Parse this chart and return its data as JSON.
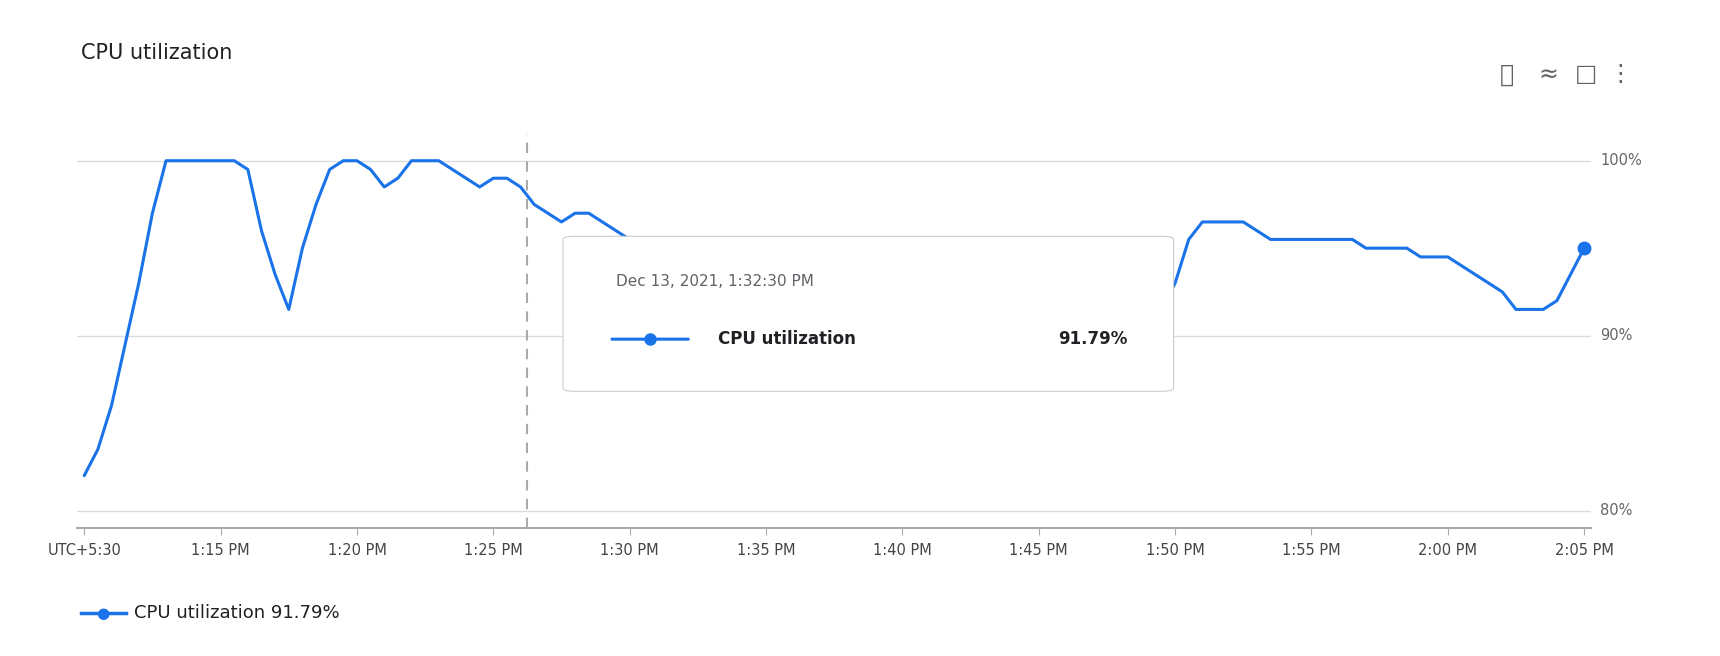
{
  "title": "CPU utilization",
  "ylim": [
    79.0,
    101.5
  ],
  "yticks": [
    80,
    90,
    100
  ],
  "ytick_labels": [
    "80%",
    "90%",
    "100%"
  ],
  "xtick_labels": [
    "UTC+5:30",
    "1:15 PM",
    "1:20 PM",
    "1:25 PM",
    "1:30 PM",
    "1:35 PM",
    "1:40 PM",
    "1:45 PM",
    "1:50 PM",
    "1:55 PM",
    "2:00 PM",
    "2:05 PM"
  ],
  "line_color": "#1a73e8",
  "bg_color": "#ffffff",
  "grid_color": "#dadce0",
  "tooltip_text_date": "Dec 13, 2021, 1:32:30 PM",
  "tooltip_text_label": "CPU utilization",
  "tooltip_text_value": "91.79%",
  "legend_label": "CPU utilization 91.79%",
  "dashed_line_x": 32.5,
  "x_data": [
    0,
    1,
    2,
    3,
    4,
    5,
    6,
    7,
    8,
    9,
    10,
    11,
    12,
    13,
    14,
    15,
    16,
    17,
    18,
    19,
    20,
    21,
    22,
    23,
    24,
    25,
    26,
    27,
    28,
    29,
    30,
    31,
    32,
    33,
    34,
    35,
    36,
    37,
    38,
    39,
    40,
    41,
    42,
    43,
    44,
    45,
    46,
    47,
    48,
    49,
    50,
    51,
    52,
    53,
    54,
    55,
    56,
    57,
    58,
    59,
    60,
    61,
    62,
    63,
    64,
    65,
    66,
    67,
    68,
    69,
    70,
    71,
    72,
    73,
    74,
    75,
    76,
    77,
    78,
    79,
    80,
    81,
    82,
    83,
    84,
    85,
    86,
    87,
    88,
    89,
    90,
    91,
    92,
    93,
    94,
    95,
    96,
    97,
    98,
    99,
    100,
    101,
    102,
    103,
    104,
    105,
    106,
    107,
    108,
    109,
    110
  ],
  "y_data": [
    82.0,
    83.5,
    86.0,
    89.5,
    93.0,
    97.0,
    100.0,
    100.0,
    100.0,
    100.0,
    100.0,
    100.0,
    99.5,
    96.0,
    93.5,
    91.5,
    95.0,
    97.5,
    99.5,
    100.0,
    100.0,
    99.5,
    98.5,
    99.0,
    100.0,
    100.0,
    100.0,
    99.5,
    99.0,
    98.5,
    99.0,
    99.0,
    98.5,
    97.5,
    97.0,
    96.5,
    97.0,
    97.0,
    96.5,
    96.0,
    95.5,
    95.5,
    95.5,
    95.5,
    95.5,
    95.5,
    95.0,
    95.0,
    95.0,
    95.0,
    94.5,
    94.5,
    94.5,
    94.5,
    94.0,
    93.5,
    93.5,
    93.5,
    93.0,
    92.5,
    92.0,
    92.0,
    91.5,
    91.5,
    92.0,
    93.5,
    93.5,
    93.0,
    93.0,
    93.0,
    93.0,
    92.5,
    92.5,
    91.5,
    91.5,
    91.5,
    91.5,
    91.0,
    91.0,
    91.5,
    93.0,
    95.5,
    96.5,
    96.5,
    96.5,
    96.5,
    96.0,
    95.5,
    95.5,
    95.5,
    95.5,
    95.5,
    95.5,
    95.5,
    95.0,
    95.0,
    95.0,
    95.0,
    94.5,
    94.5,
    94.5,
    94.0,
    93.5,
    93.0,
    92.5,
    91.5,
    91.5,
    91.5,
    92.0,
    93.5,
    95.0
  ]
}
